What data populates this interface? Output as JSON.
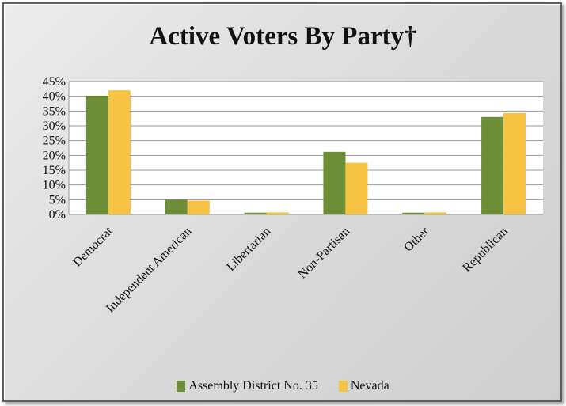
{
  "chart_data": {
    "type": "bar",
    "title": "Active Voters By Party†",
    "categories": [
      "Democrat",
      "Independent American",
      "Libertarian",
      "Non-Partisan",
      "Other",
      "Republican"
    ],
    "series": [
      {
        "name": "Assembly District No. 35",
        "color": "#6b8e36",
        "values": [
          40.2,
          5.0,
          0.6,
          21.2,
          0.6,
          33.0
        ]
      },
      {
        "name": "Nevada",
        "color": "#f5c242",
        "values": [
          42.0,
          4.7,
          0.7,
          17.5,
          0.7,
          34.3
        ]
      }
    ],
    "ylim": [
      0,
      45
    ],
    "yticks": [
      "0%",
      "5%",
      "10%",
      "15%",
      "20%",
      "25%",
      "30%",
      "35%",
      "40%",
      "45%"
    ],
    "grid": true,
    "legend_position": "bottom"
  }
}
